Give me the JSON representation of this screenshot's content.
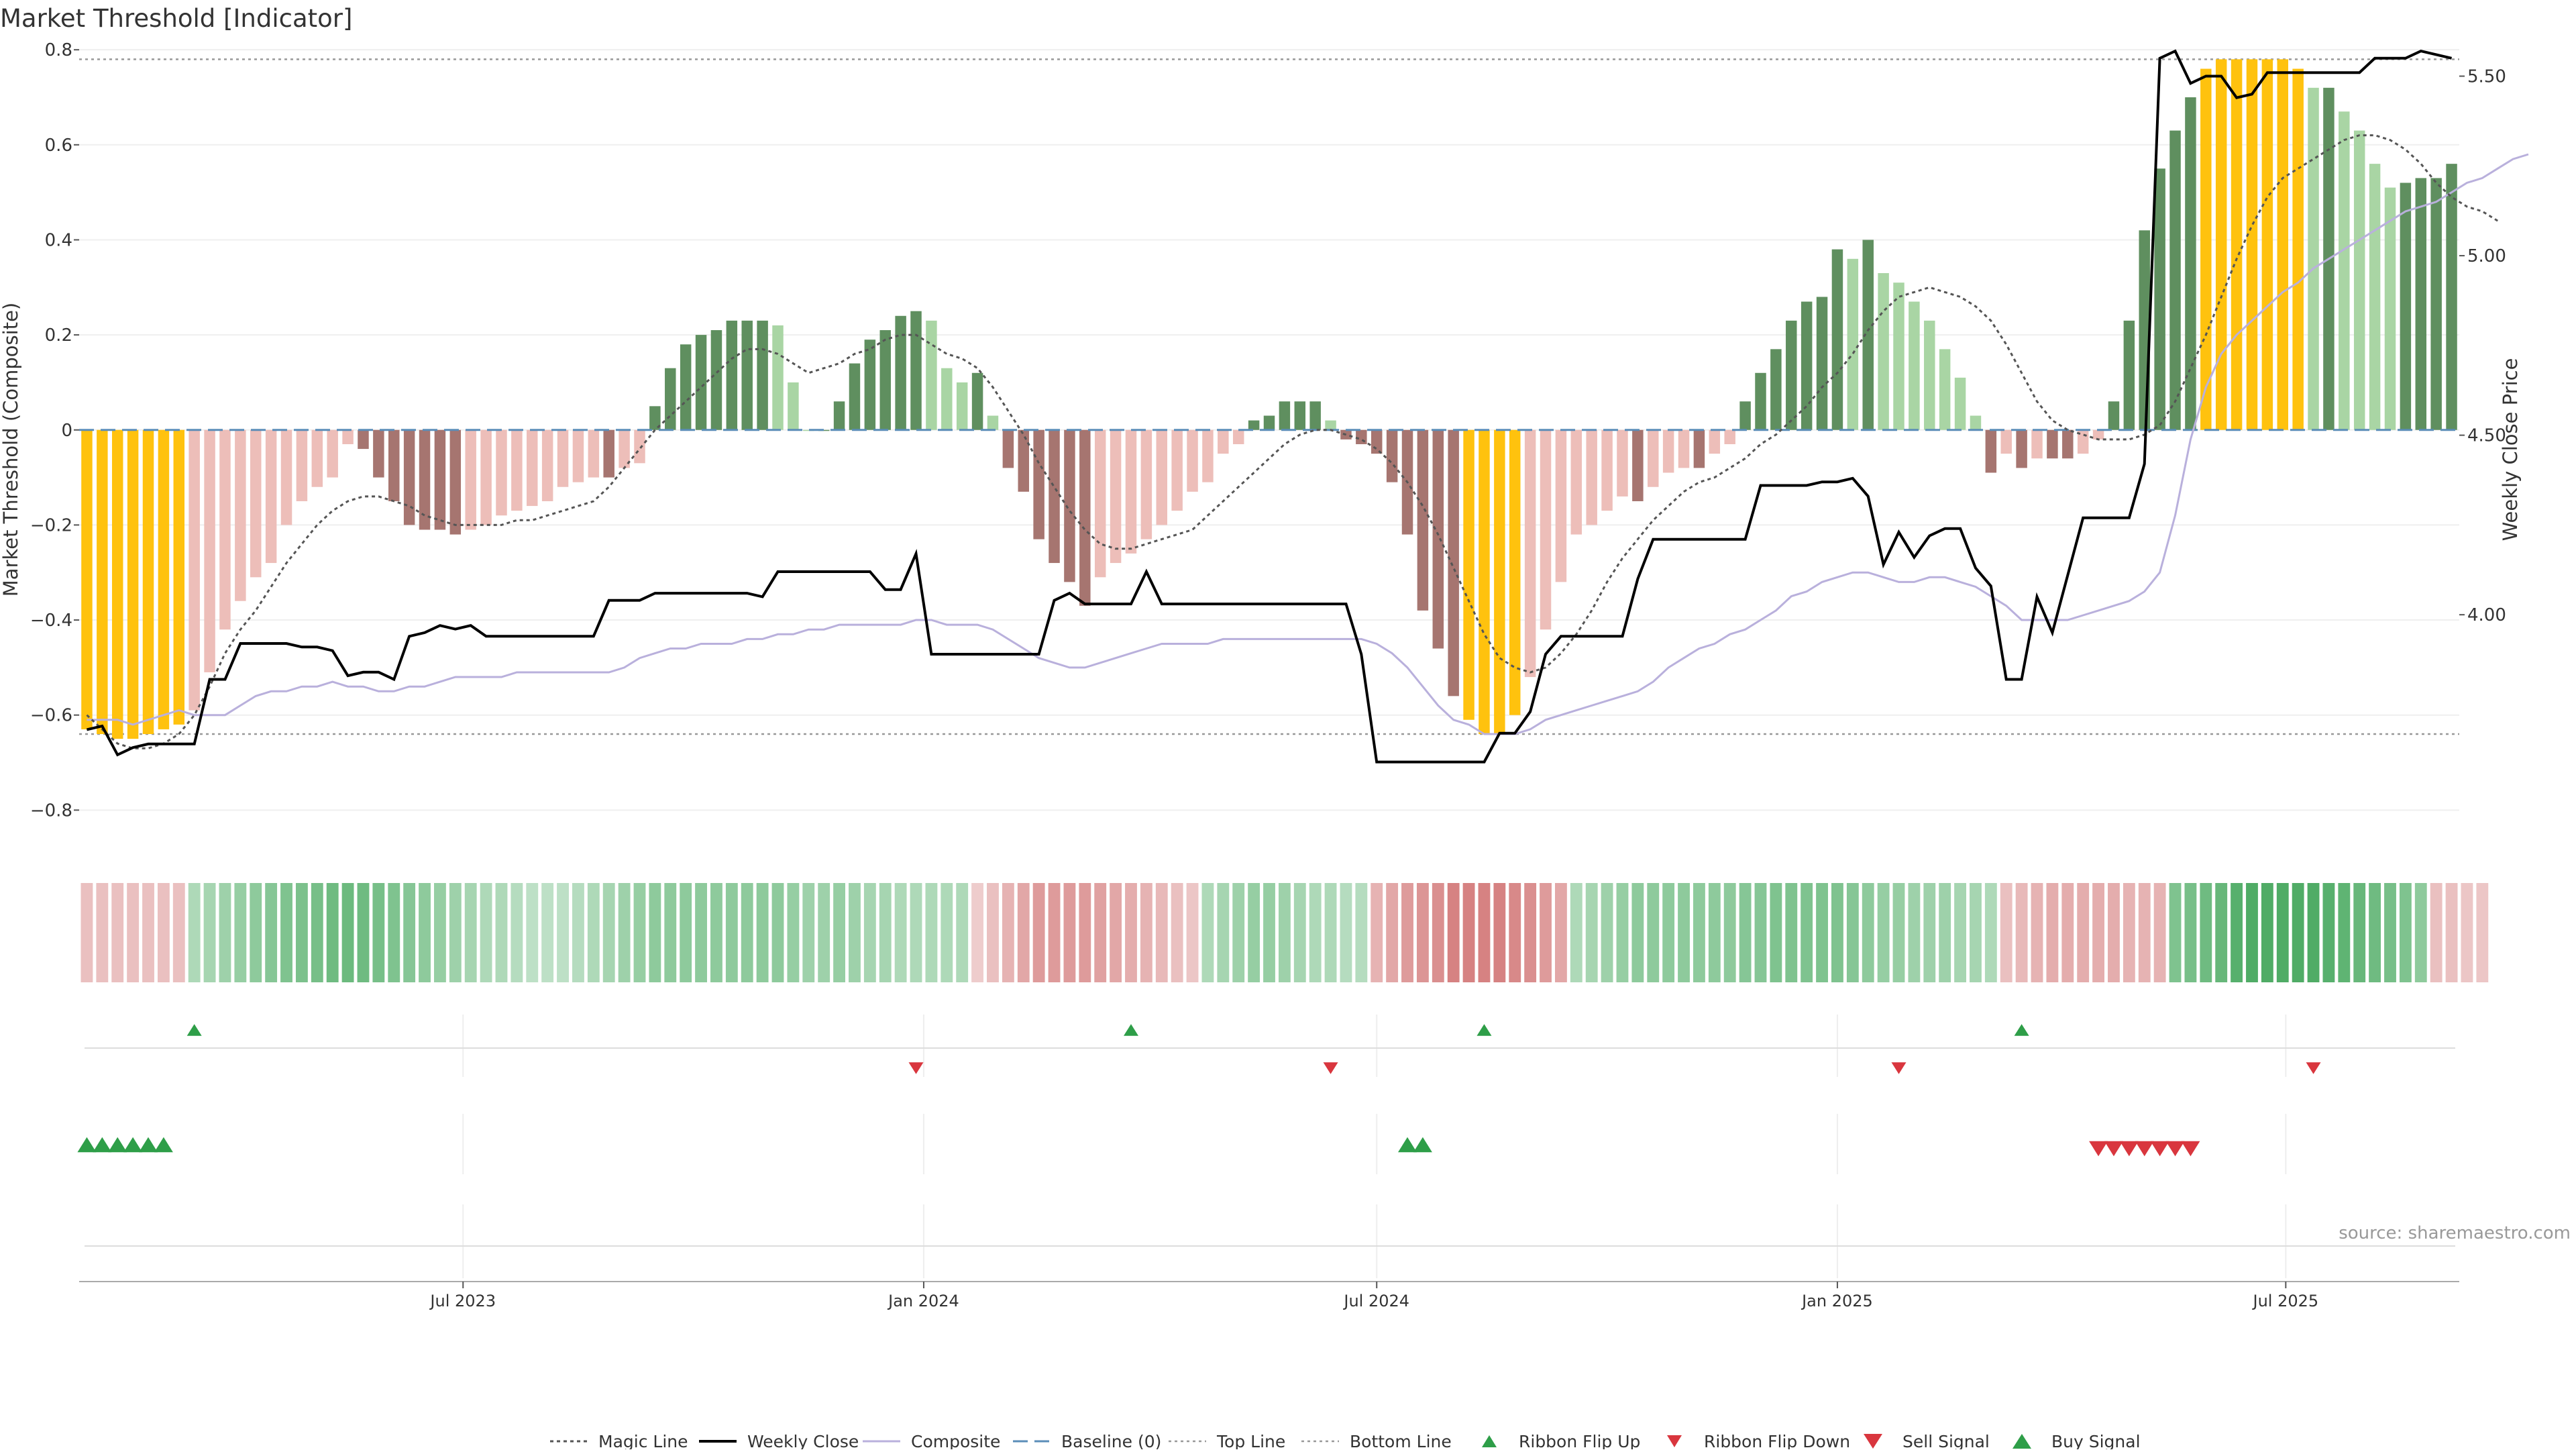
{
  "title": "Market Threshold [Indicator]",
  "source": "source: sharemaestro.com",
  "colors": {
    "gold": "#FFC20E",
    "strong_green": "#5F8F5F",
    "light_green": "#A9D5A4",
    "light_red": "#EDBEB9",
    "strong_red": "#A67570",
    "close_line": "#000000",
    "composite_line": "#B9B0DC",
    "magic_line": "#555555",
    "baseline": "#5B8DB8",
    "buy_marker": "#2E9E48",
    "sell_marker": "#D9363E"
  },
  "chart_data": {
    "type": "bar",
    "title": "Market Threshold [Indicator]",
    "ylabel": "Market Threshold (Composite)",
    "y2label": "Weekly Close Price",
    "ylim": [
      -0.88,
      0.82
    ],
    "y2lim": [
      3.35,
      5.6
    ],
    "yticks": [
      0.8,
      0.6,
      0.4,
      0.2,
      0,
      -0.2,
      -0.4,
      -0.6,
      -0.8
    ],
    "yticklabels": [
      "0.8",
      "0.6",
      "0.4",
      "0.2",
      "0",
      "−0.2",
      "−0.4",
      "−0.6",
      "−0.8"
    ],
    "y2ticks": [
      5.5,
      5.0,
      4.5,
      4.0
    ],
    "y2ticklabels": [
      "5.50",
      "5.00",
      "4.50",
      "4.00"
    ],
    "xticks": [
      {
        "label": "Jul 2023",
        "week": 25
      },
      {
        "label": "Jan 2024",
        "week": 55
      },
      {
        "label": "Jul 2024",
        "week": 84.5
      },
      {
        "label": "Jan 2025",
        "week": 114.5
      },
      {
        "label": "Jul 2025",
        "week": 143.7
      }
    ],
    "top_line": 0.78,
    "bottom_line": -0.64,
    "grid": true,
    "legend_position": "bottom-center",
    "composite_bars": [
      -0.63,
      -0.64,
      -0.65,
      -0.65,
      -0.64,
      -0.63,
      -0.62,
      -0.59,
      -0.51,
      -0.42,
      -0.36,
      -0.31,
      -0.28,
      -0.2,
      -0.15,
      -0.12,
      -0.1,
      -0.03,
      -0.04,
      -0.1,
      -0.15,
      -0.2,
      -0.21,
      -0.21,
      -0.22,
      -0.21,
      -0.2,
      -0.18,
      -0.17,
      -0.16,
      -0.15,
      -0.12,
      -0.11,
      -0.1,
      -0.1,
      -0.08,
      -0.07,
      0.05,
      0.13,
      0.18,
      0.2,
      0.21,
      0.23,
      0.23,
      0.23,
      0.22,
      0.1,
      0,
      0,
      0.06,
      0.14,
      0.19,
      0.21,
      0.24,
      0.25,
      0.23,
      0.13,
      0.1,
      0.12,
      0.03,
      -0.08,
      -0.13,
      -0.23,
      -0.28,
      -0.32,
      -0.37,
      -0.31,
      -0.28,
      -0.26,
      -0.23,
      -0.2,
      -0.17,
      -0.13,
      -0.11,
      -0.05,
      -0.03,
      0.02,
      0.03,
      0.06,
      0.06,
      0.06,
      0.02,
      -0.02,
      -0.03,
      -0.05,
      -0.11,
      -0.22,
      -0.38,
      -0.46,
      -0.56,
      -0.61,
      -0.64,
      -0.64,
      -0.6,
      -0.52,
      -0.42,
      -0.32,
      -0.22,
      -0.2,
      -0.17,
      -0.14,
      -0.15,
      -0.12,
      -0.09,
      -0.08,
      -0.08,
      -0.05,
      -0.03,
      0.06,
      0.12,
      0.17,
      0.23,
      0.27,
      0.28,
      0.38,
      0.36,
      0.4,
      0.33,
      0.31,
      0.27,
      0.23,
      0.17,
      0.11,
      0.03,
      -0.09,
      -0.05,
      -0.08,
      -0.06,
      -0.06,
      -0.06,
      -0.05,
      -0.02,
      0.06,
      0.23,
      0.42,
      0.55,
      0.63,
      0.7,
      0.76,
      0.78,
      0.78,
      0.78,
      0.78,
      0.78,
      0.76,
      0.72,
      0.72,
      0.67,
      0.63,
      0.56,
      0.51,
      0.52,
      0.53,
      0.53,
      0.56
    ],
    "weekly_close": [
      3.68,
      3.69,
      3.61,
      3.63,
      3.64,
      3.64,
      3.64,
      3.64,
      3.82,
      3.82,
      3.92,
      3.92,
      3.92,
      3.92,
      3.91,
      3.91,
      3.9,
      3.83,
      3.84,
      3.84,
      3.82,
      3.94,
      3.95,
      3.97,
      3.96,
      3.97,
      3.94,
      3.94,
      3.94,
      3.94,
      3.94,
      3.94,
      3.94,
      3.94,
      4.04,
      4.04,
      4.04,
      4.06,
      4.06,
      4.06,
      4.06,
      4.06,
      4.06,
      4.06,
      4.05,
      4.12,
      4.12,
      4.12,
      4.12,
      4.12,
      4.12,
      4.12,
      4.07,
      4.07,
      4.17,
      3.89,
      3.89,
      3.89,
      3.89,
      3.89,
      3.89,
      3.89,
      3.89,
      4.04,
      4.06,
      4.03,
      4.03,
      4.03,
      4.03,
      4.12,
      4.03,
      4.03,
      4.03,
      4.03,
      4.03,
      4.03,
      4.03,
      4.03,
      4.03,
      4.03,
      4.03,
      4.03,
      4.03,
      3.89,
      3.59,
      3.59,
      3.59,
      3.59,
      3.59,
      3.59,
      3.59,
      3.59,
      3.67,
      3.67,
      3.73,
      3.89,
      3.94,
      3.94,
      3.94,
      3.94,
      3.94,
      4.1,
      4.21,
      4.21,
      4.21,
      4.21,
      4.21,
      4.21,
      4.21,
      4.36,
      4.36,
      4.36,
      4.36,
      4.37,
      4.37,
      4.38,
      4.33,
      4.14,
      4.23,
      4.16,
      4.22,
      4.24,
      4.24,
      4.13,
      4.08,
      3.82,
      3.82,
      4.05,
      3.95,
      4.11,
      4.27,
      4.27,
      4.27,
      4.27,
      4.42,
      5.55,
      5.57,
      5.48,
      5.5,
      5.5,
      5.44,
      5.45,
      5.51,
      5.51,
      5.51,
      5.51,
      5.51,
      5.51,
      5.51,
      5.55,
      5.55,
      5.55,
      5.57,
      5.56,
      5.55
    ],
    "composite_line": [
      -0.61,
      -0.61,
      -0.61,
      -0.62,
      -0.61,
      -0.6,
      -0.59,
      -0.6,
      -0.6,
      -0.6,
      -0.58,
      -0.56,
      -0.55,
      -0.55,
      -0.54,
      -0.54,
      -0.53,
      -0.54,
      -0.54,
      -0.55,
      -0.55,
      -0.54,
      -0.54,
      -0.53,
      -0.52,
      -0.52,
      -0.52,
      -0.52,
      -0.51,
      -0.51,
      -0.51,
      -0.51,
      -0.51,
      -0.51,
      -0.51,
      -0.5,
      -0.48,
      -0.47,
      -0.46,
      -0.46,
      -0.45,
      -0.45,
      -0.45,
      -0.44,
      -0.44,
      -0.43,
      -0.43,
      -0.42,
      -0.42,
      -0.41,
      -0.41,
      -0.41,
      -0.41,
      -0.41,
      -0.4,
      -0.4,
      -0.41,
      -0.41,
      -0.41,
      -0.42,
      -0.44,
      -0.46,
      -0.48,
      -0.49,
      -0.5,
      -0.5,
      -0.49,
      -0.48,
      -0.47,
      -0.46,
      -0.45,
      -0.45,
      -0.45,
      -0.45,
      -0.44,
      -0.44,
      -0.44,
      -0.44,
      -0.44,
      -0.44,
      -0.44,
      -0.44,
      -0.44,
      -0.44,
      -0.45,
      -0.47,
      -0.5,
      -0.54,
      -0.58,
      -0.61,
      -0.62,
      -0.64,
      -0.64,
      -0.64,
      -0.63,
      -0.61,
      -0.6,
      -0.59,
      -0.58,
      -0.57,
      -0.56,
      -0.55,
      -0.53,
      -0.5,
      -0.48,
      -0.46,
      -0.45,
      -0.43,
      -0.42,
      -0.4,
      -0.38,
      -0.35,
      -0.34,
      -0.32,
      -0.31,
      -0.3,
      -0.3,
      -0.31,
      -0.32,
      -0.32,
      -0.31,
      -0.31,
      -0.32,
      -0.33,
      -0.35,
      -0.37,
      -0.4,
      -0.4,
      -0.4,
      -0.4,
      -0.39,
      -0.38,
      -0.37,
      -0.36,
      -0.34,
      -0.3,
      -0.18,
      -0.02,
      0.09,
      0.16,
      0.2,
      0.23,
      0.26,
      0.29,
      0.31,
      0.34,
      0.36,
      0.38,
      0.4,
      0.42,
      0.44,
      0.46,
      0.47,
      0.48,
      0.5,
      0.52,
      0.53,
      0.55,
      0.57,
      0.58
    ],
    "magic_line": [
      -0.6,
      -0.63,
      -0.66,
      -0.67,
      -0.67,
      -0.66,
      -0.64,
      -0.6,
      -0.54,
      -0.47,
      -0.42,
      -0.38,
      -0.33,
      -0.28,
      -0.24,
      -0.2,
      -0.17,
      -0.15,
      -0.14,
      -0.14,
      -0.15,
      -0.16,
      -0.18,
      -0.19,
      -0.2,
      -0.2,
      -0.2,
      -0.2,
      -0.19,
      -0.19,
      -0.18,
      -0.17,
      -0.16,
      -0.15,
      -0.12,
      -0.08,
      -0.04,
      0,
      0.03,
      0.06,
      0.09,
      0.12,
      0.15,
      0.17,
      0.17,
      0.16,
      0.14,
      0.12,
      0.13,
      0.14,
      0.16,
      0.17,
      0.19,
      0.2,
      0.2,
      0.18,
      0.16,
      0.15,
      0.13,
      0.09,
      0.04,
      -0.01,
      -0.07,
      -0.12,
      -0.17,
      -0.21,
      -0.24,
      -0.25,
      -0.25,
      -0.24,
      -0.23,
      -0.22,
      -0.21,
      -0.18,
      -0.15,
      -0.12,
      -0.09,
      -0.06,
      -0.03,
      -0.01,
      0,
      0,
      -0.01,
      -0.02,
      -0.04,
      -0.07,
      -0.11,
      -0.16,
      -0.22,
      -0.29,
      -0.36,
      -0.43,
      -0.48,
      -0.5,
      -0.51,
      -0.5,
      -0.47,
      -0.43,
      -0.38,
      -0.32,
      -0.27,
      -0.23,
      -0.19,
      -0.16,
      -0.13,
      -0.11,
      -0.1,
      -0.08,
      -0.06,
      -0.03,
      -0.01,
      0.02,
      0.05,
      0.09,
      0.12,
      0.16,
      0.21,
      0.25,
      0.28,
      0.29,
      0.3,
      0.29,
      0.28,
      0.26,
      0.23,
      0.18,
      0.12,
      0.06,
      0.02,
      0,
      -0.01,
      -0.02,
      -0.02,
      -0.02,
      -0.01,
      0.01,
      0.06,
      0.13,
      0.2,
      0.28,
      0.36,
      0.43,
      0.49,
      0.53,
      0.55,
      0.57,
      0.59,
      0.61,
      0.62,
      0.62,
      0.61,
      0.59,
      0.56,
      0.52,
      0.49,
      0.47,
      0.46,
      0.44
    ],
    "ribbon": [
      -0.3,
      -0.3,
      -0.3,
      -0.3,
      -0.3,
      -0.3,
      -0.3,
      0.3,
      0.35,
      0.4,
      0.45,
      0.5,
      0.55,
      0.6,
      0.62,
      0.65,
      0.7,
      0.72,
      0.7,
      0.65,
      0.6,
      0.55,
      0.5,
      0.45,
      0.4,
      0.35,
      0.3,
      0.3,
      0.25,
      0.2,
      0.2,
      0.2,
      0.25,
      0.3,
      0.35,
      0.4,
      0.45,
      0.5,
      0.5,
      0.5,
      0.5,
      0.5,
      0.5,
      0.5,
      0.5,
      0.5,
      0.45,
      0.4,
      0.4,
      0.45,
      0.4,
      0.35,
      0.35,
      0.3,
      0.3,
      0.3,
      0.3,
      0.3,
      -0.2,
      -0.3,
      -0.4,
      -0.5,
      -0.6,
      -0.6,
      -0.6,
      -0.6,
      -0.55,
      -0.5,
      -0.45,
      -0.4,
      -0.35,
      -0.3,
      -0.25,
      0.3,
      0.35,
      0.4,
      0.45,
      0.45,
      0.4,
      0.35,
      0.3,
      0.3,
      0.25,
      0.25,
      -0.4,
      -0.5,
      -0.6,
      -0.65,
      -0.7,
      -0.8,
      -0.8,
      -0.8,
      -0.8,
      -0.75,
      -0.7,
      -0.6,
      -0.5,
      0.3,
      0.35,
      0.4,
      0.45,
      0.5,
      0.5,
      0.5,
      0.5,
      0.5,
      0.5,
      0.5,
      0.55,
      0.55,
      0.6,
      0.6,
      0.6,
      0.6,
      0.6,
      0.55,
      0.5,
      0.45,
      0.45,
      0.4,
      0.4,
      0.4,
      0.35,
      0.35,
      0.3,
      -0.3,
      -0.35,
      -0.4,
      -0.45,
      -0.45,
      -0.45,
      -0.45,
      -0.45,
      -0.4,
      -0.4,
      -0.4,
      0.6,
      0.65,
      0.7,
      0.75,
      0.85,
      0.9,
      0.9,
      0.9,
      0.9,
      0.9,
      0.85,
      0.8,
      0.75,
      0.7,
      0.65,
      0.6,
      0.5,
      -0.3,
      -0.3,
      -0.25,
      -0.25
    ],
    "ribbon_flip_up": [
      7,
      68,
      91,
      126
    ],
    "ribbon_flip_down": [
      54,
      81,
      118,
      145
    ],
    "buy_signal": [
      0,
      1,
      2,
      3,
      4,
      5,
      86,
      87
    ],
    "sell_signal": [
      131,
      132,
      133,
      134,
      135,
      136,
      137
    ],
    "legend": [
      "Magic Line",
      "Weekly Close",
      "Composite",
      "Baseline (0)",
      "Top Line",
      "Bottom Line",
      "Ribbon Flip Up",
      "Ribbon Flip Down",
      "Sell Signal",
      "Buy Signal"
    ]
  }
}
